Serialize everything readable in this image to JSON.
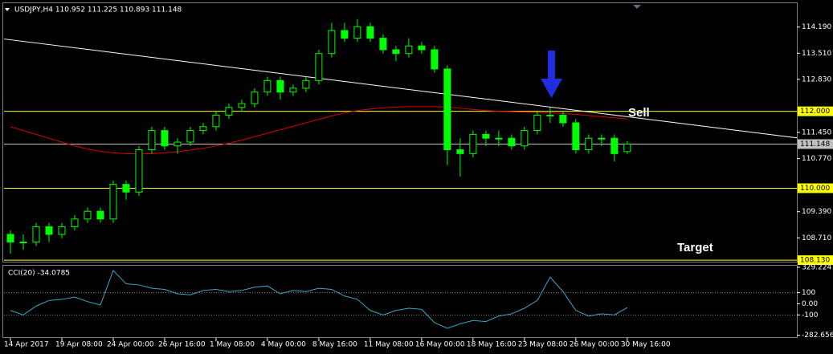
{
  "chart_data": {
    "type": "candlestick",
    "title": "USDJPY,H4 110.952 111.225 110.893 111.148",
    "annotations": [
      "Sell",
      "Target"
    ],
    "color": "#00ff00",
    "xlim": [
      -0.5,
      61.2
    ],
    "xticks": [
      {
        "value": 0,
        "label": "14 Apr 2017"
      },
      {
        "value": 4,
        "label": "19 Apr 08:00"
      },
      {
        "value": 8,
        "label": "24 Apr 00:00"
      },
      {
        "value": 12,
        "label": "26 Apr 16:00"
      },
      {
        "value": 16,
        "label": "1 May 08:00"
      },
      {
        "value": 20,
        "label": "4 May 00:00"
      },
      {
        "value": 24,
        "label": "8 May 16:00"
      },
      {
        "value": 28,
        "label": "11 May 08:00"
      },
      {
        "value": 32,
        "label": "16 May 00:00"
      },
      {
        "value": 36,
        "label": "18 May 16:00"
      },
      {
        "value": 40,
        "label": "23 May 08:00"
      },
      {
        "value": 44,
        "label": "26 May 00:00"
      },
      {
        "value": 48,
        "label": "30 May 16:00"
      }
    ],
    "ylim": [
      108.09,
      114.81
    ],
    "yticks": [
      {
        "value": 114.19,
        "label": "114.190"
      },
      {
        "value": 113.51,
        "label": "113.510"
      },
      {
        "value": 112.83,
        "label": "112.830"
      },
      {
        "value": 111.45,
        "label": "111.450"
      },
      {
        "value": 110.77,
        "label": "110.770"
      },
      {
        "value": 109.39,
        "label": "109.390"
      },
      {
        "value": 108.71,
        "label": "108.710"
      }
    ],
    "levels": [
      {
        "value": 112,
        "label": "112.000",
        "color": "#ffff00"
      },
      {
        "value": 110,
        "label": "110.000",
        "color": "#ffff00"
      },
      {
        "value": 108.13,
        "label": "108.130",
        "color": "#ffff00"
      },
      {
        "value": 111.148,
        "label": "111.148",
        "color": "#c0c0c0"
      }
    ],
    "trendline": {
      "color": "#ffffff",
      "x": [
        -0.5,
        61.2
      ],
      "values": [
        113.88,
        111.31
      ]
    },
    "open": [
      108.8,
      108.6,
      108.6,
      109.0,
      108.8,
      109.0,
      109.2,
      109.4,
      109.2,
      110.1,
      109.9,
      111.0,
      111.5,
      111.1,
      111.2,
      111.5,
      111.6,
      111.9,
      112.1,
      112.2,
      112.5,
      112.8,
      112.5,
      112.6,
      112.8,
      113.5,
      114.1,
      113.9,
      114.2,
      113.9,
      113.6,
      113.5,
      113.7,
      113.6,
      113.1,
      111.0,
      110.9,
      111.4,
      111.3,
      111.3,
      111.1,
      111.5,
      111.9,
      111.9,
      111.7,
      111.0,
      111.3,
      111.3,
      110.952
    ],
    "high": [
      108.9,
      108.8,
      109.1,
      109.1,
      109.1,
      109.3,
      109.5,
      109.5,
      110.2,
      110.2,
      111.1,
      111.6,
      111.6,
      111.3,
      111.6,
      111.7,
      112.0,
      112.2,
      112.3,
      112.6,
      112.9,
      112.9,
      112.7,
      112.9,
      113.6,
      114.3,
      114.3,
      114.4,
      114.3,
      114.0,
      113.7,
      113.9,
      113.8,
      113.7,
      113.2,
      111.3,
      111.5,
      111.5,
      111.5,
      111.4,
      111.6,
      112.0,
      112.1,
      112.0,
      111.8,
      111.4,
      111.4,
      111.4,
      111.225
    ],
    "low": [
      108.3,
      108.4,
      108.5,
      108.6,
      108.7,
      108.9,
      109.1,
      109.1,
      109.1,
      109.7,
      109.8,
      110.9,
      111.0,
      110.9,
      111.1,
      111.4,
      111.5,
      111.8,
      112.0,
      112.1,
      112.4,
      112.3,
      112.4,
      112.5,
      112.7,
      113.4,
      113.8,
      113.8,
      113.8,
      113.5,
      113.3,
      113.4,
      113.5,
      113.0,
      110.6,
      110.3,
      110.8,
      111.1,
      111.1,
      111.0,
      111.0,
      111.4,
      111.7,
      111.6,
      110.9,
      110.9,
      111.1,
      110.7,
      110.893
    ],
    "close": [
      108.6,
      108.6,
      109.0,
      108.8,
      109.0,
      109.2,
      109.4,
      109.2,
      110.1,
      109.9,
      111.0,
      111.5,
      111.1,
      111.2,
      111.5,
      111.6,
      111.9,
      112.1,
      112.2,
      112.5,
      112.8,
      112.5,
      112.6,
      112.8,
      113.5,
      114.1,
      113.9,
      114.2,
      113.9,
      113.6,
      113.5,
      113.7,
      113.6,
      113.1,
      111.0,
      110.9,
      111.4,
      111.3,
      111.3,
      111.1,
      111.5,
      111.9,
      111.9,
      111.7,
      111.0,
      111.3,
      111.3,
      110.9,
      111.148
    ],
    "ma": {
      "color": "#dd0000",
      "values": [
        111.6,
        111.5,
        111.4,
        111.3,
        111.2,
        111.1,
        111.02,
        110.96,
        110.92,
        110.9,
        110.89,
        110.9,
        110.92,
        110.95,
        110.99,
        111.04,
        111.1,
        111.17,
        111.25,
        111.34,
        111.43,
        111.52,
        111.61,
        111.7,
        111.79,
        111.88,
        111.96,
        112.02,
        112.06,
        112.09,
        112.11,
        112.12,
        112.12,
        112.12,
        112.11,
        112.08,
        112.05,
        112.02,
        112.0,
        111.99,
        111.98,
        111.97,
        111.96,
        111.94,
        111.92,
        111.89,
        111.86,
        111.83,
        111.8
      ]
    },
    "indicator": {
      "title": "CCI(20) -34.0785",
      "color": "#3aa6c8",
      "ylim": [
        -300,
        342.9
      ],
      "yticks": [
        329.2247,
        100,
        {
          "value": 0,
          "label": "0.00"
        },
        -100,
        -282.6567
      ],
      "levels": [
        100,
        -100
      ],
      "values": [
        -60,
        -100,
        -20,
        30,
        40,
        60,
        20,
        -10,
        300,
        180,
        170,
        140,
        130,
        90,
        80,
        120,
        130,
        110,
        120,
        150,
        160,
        90,
        120,
        110,
        140,
        130,
        70,
        40,
        -60,
        -100,
        -60,
        -40,
        -50,
        -170,
        -220,
        -180,
        -150,
        -160,
        -110,
        -90,
        -40,
        30,
        240,
        110,
        -60,
        -110,
        -90,
        -100,
        -34.0785
      ]
    }
  }
}
